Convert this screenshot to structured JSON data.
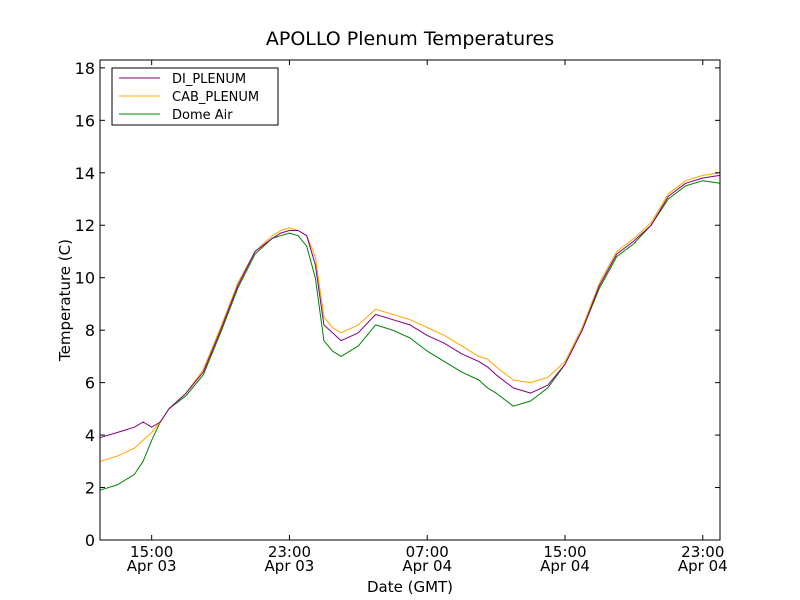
{
  "chart_data": {
    "type": "line",
    "title": "APOLLO Plenum Temperatures",
    "xlabel": "Date (GMT)",
    "ylabel": "Temperature (C)",
    "x_unit": "hours since Apr 03 12:00 GMT",
    "xlim": [
      0,
      36
    ],
    "ylim": [
      0,
      18.3
    ],
    "yticks": [
      0,
      2,
      4,
      6,
      8,
      10,
      12,
      14,
      16,
      18
    ],
    "xticks": [
      {
        "x": 3,
        "time": "15:00",
        "date": "Apr 03"
      },
      {
        "x": 11,
        "time": "23:00",
        "date": "Apr 03"
      },
      {
        "x": 19,
        "time": "07:00",
        "date": "Apr 04"
      },
      {
        "x": 27,
        "time": "15:00",
        "date": "Apr 04"
      },
      {
        "x": 35,
        "time": "23:00",
        "date": "Apr 04"
      }
    ],
    "legend_position": "top-left",
    "series": [
      {
        "name": "DI_PLENUM",
        "color": "#800080",
        "x": [
          0,
          1,
          2,
          2.5,
          3,
          3.5,
          4,
          5,
          6,
          7,
          8,
          9,
          10,
          10.5,
          11,
          11.5,
          12,
          12.5,
          13,
          13.5,
          14,
          15,
          16,
          16.5,
          17,
          18,
          19,
          20,
          21,
          22,
          22.5,
          23,
          24,
          25,
          26,
          27,
          28,
          29,
          30,
          31,
          32,
          33,
          34,
          35,
          36
        ],
        "y": [
          3.9,
          4.1,
          4.3,
          4.5,
          4.3,
          4.5,
          5.0,
          5.6,
          6.4,
          8.0,
          9.7,
          11.0,
          11.5,
          11.7,
          11.8,
          11.8,
          11.6,
          10.5,
          8.2,
          7.9,
          7.6,
          7.9,
          8.6,
          8.5,
          8.4,
          8.2,
          7.8,
          7.5,
          7.1,
          6.8,
          6.6,
          6.3,
          5.8,
          5.6,
          5.9,
          6.7,
          8.0,
          9.7,
          10.9,
          11.4,
          12.0,
          13.1,
          13.6,
          13.8,
          13.9
        ]
      },
      {
        "name": "CAB_PLENUM",
        "color": "#FFA500",
        "x": [
          0,
          1,
          2,
          2.5,
          3,
          3.5,
          4,
          5,
          6,
          7,
          8,
          9,
          10,
          10.5,
          11,
          11.5,
          12,
          12.5,
          13,
          13.5,
          14,
          15,
          16,
          16.5,
          17,
          18,
          19,
          20,
          21,
          22,
          22.5,
          23,
          24,
          25,
          26,
          27,
          28,
          29,
          30,
          31,
          32,
          33,
          34,
          35,
          36
        ],
        "y": [
          3.0,
          3.2,
          3.5,
          3.8,
          4.1,
          4.5,
          5.0,
          5.6,
          6.5,
          8.1,
          9.8,
          11.0,
          11.6,
          11.8,
          11.9,
          11.8,
          11.6,
          10.8,
          8.5,
          8.1,
          7.9,
          8.2,
          8.8,
          8.7,
          8.6,
          8.4,
          8.1,
          7.8,
          7.4,
          7.0,
          6.9,
          6.6,
          6.1,
          6.0,
          6.2,
          6.8,
          8.1,
          9.8,
          11.0,
          11.5,
          12.1,
          13.2,
          13.7,
          13.9,
          14.0
        ]
      },
      {
        "name": "Dome Air",
        "color": "#008000",
        "x": [
          0,
          1,
          2,
          2.5,
          3,
          3.5,
          4,
          5,
          6,
          7,
          8,
          9,
          10,
          10.5,
          11,
          11.5,
          12,
          12.5,
          13,
          13.5,
          14,
          15,
          16,
          16.5,
          17,
          18,
          19,
          20,
          21,
          22,
          22.5,
          23,
          24,
          25,
          26,
          27,
          28,
          29,
          30,
          31,
          32,
          33,
          34,
          35,
          36
        ],
        "y": [
          1.9,
          2.1,
          2.5,
          3.0,
          3.8,
          4.5,
          5.0,
          5.5,
          6.3,
          7.9,
          9.6,
          10.9,
          11.5,
          11.6,
          11.7,
          11.6,
          11.2,
          10.0,
          7.6,
          7.2,
          7.0,
          7.4,
          8.2,
          8.1,
          8.0,
          7.7,
          7.2,
          6.8,
          6.4,
          6.1,
          5.8,
          5.6,
          5.1,
          5.3,
          5.8,
          6.7,
          8.0,
          9.6,
          10.8,
          11.3,
          12.0,
          13.0,
          13.5,
          13.7,
          13.6
        ]
      }
    ]
  }
}
